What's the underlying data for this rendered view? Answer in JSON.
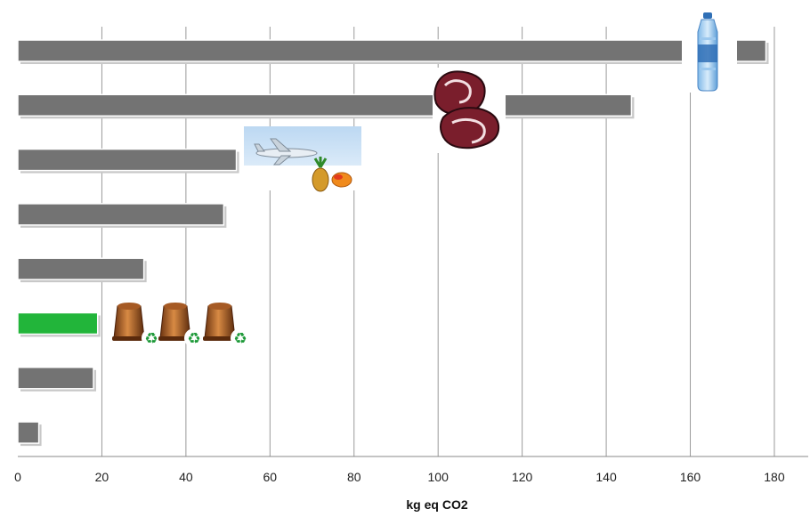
{
  "chart_data": {
    "type": "bar",
    "orientation": "horizontal",
    "title": "",
    "xlabel": "kg eq CO2",
    "ylabel": "",
    "xlim": [
      0,
      190
    ],
    "xticks": [
      0,
      20,
      40,
      60,
      80,
      100,
      120,
      140,
      160,
      180
    ],
    "grid": true,
    "legend": "none",
    "categories": [
      "",
      "",
      "",
      "",
      "",
      "",
      "",
      ""
    ],
    "values": [
      178,
      146,
      52,
      49,
      30,
      19,
      18,
      5
    ],
    "bar_colors": [
      "#737373",
      "#737373",
      "#737373",
      "#737373",
      "#737373",
      "#22b53a",
      "#737373",
      "#737373"
    ],
    "annotations": [
      {
        "bar_index": 0,
        "icon": "water-bottle-icon"
      },
      {
        "bar_index": 1,
        "icon": "steak-icon"
      },
      {
        "bar_index": 2,
        "icon": "airplane-fruit-icon"
      },
      {
        "bar_index": 5,
        "icon": "recyclable-capsules-icon"
      }
    ]
  }
}
